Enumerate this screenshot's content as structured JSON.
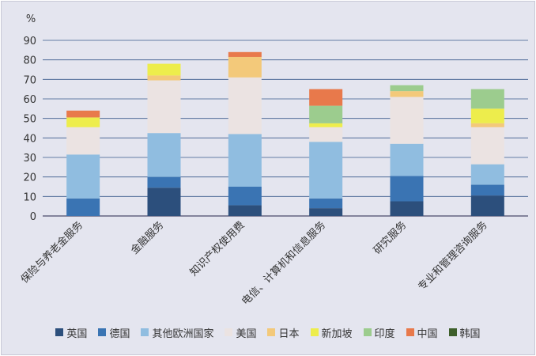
{
  "chart_data": {
    "type": "bar",
    "stacked": true,
    "ylabel": "%",
    "ylim": [
      0,
      90
    ],
    "yticks": [
      0,
      10,
      20,
      30,
      40,
      50,
      60,
      70,
      80,
      90
    ],
    "grid": true,
    "legend_position": "bottom",
    "categories": [
      "保险与养老金服务",
      "金融服务",
      "知识产权使用费",
      "电信、计算机和信息服务",
      "研究服务",
      "专业和管理咨询服务"
    ],
    "series": [
      {
        "name": "英国",
        "color": "#2c4f7c",
        "values": [
          0,
          14.5,
          5.5,
          4,
          7.5,
          10.5
        ]
      },
      {
        "name": "德国",
        "color": "#3a74b3",
        "values": [
          9,
          5.5,
          9.5,
          5,
          13,
          5.5
        ]
      },
      {
        "name": "其他欧洲国家",
        "color": "#90bde0",
        "values": [
          22.5,
          22.5,
          27,
          29,
          16.5,
          10.5
        ]
      },
      {
        "name": "美国",
        "color": "#ebe3e2",
        "values": [
          14,
          27,
          29,
          7.5,
          24,
          19
        ]
      },
      {
        "name": "日本",
        "color": "#f3c97a",
        "values": [
          0,
          2.5,
          10.5,
          0,
          3,
          2
        ]
      },
      {
        "name": "新加坡",
        "color": "#eded4c",
        "values": [
          5,
          6,
          0,
          2,
          0,
          7.5
        ]
      },
      {
        "name": "印度",
        "color": "#9ccc8e",
        "values": [
          0,
          0,
          0,
          9,
          3,
          10
        ]
      },
      {
        "name": "中国",
        "color": "#e8794b",
        "values": [
          3.5,
          0,
          2.5,
          8.5,
          0,
          0
        ]
      },
      {
        "name": "韩国",
        "color": "#3e5f2b",
        "values": [
          0,
          0,
          0,
          0,
          0,
          0
        ]
      }
    ]
  }
}
